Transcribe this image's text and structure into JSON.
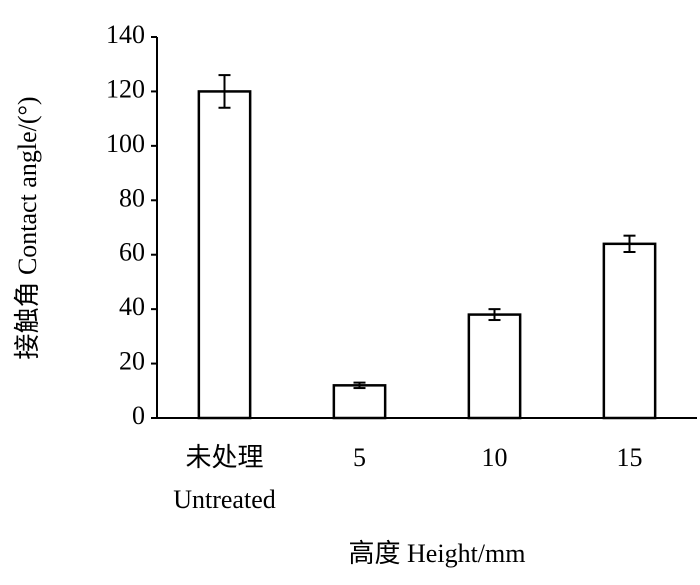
{
  "chart_data": {
    "type": "bar",
    "x_label": "高度 Height/mm",
    "y_label": "接触角 Contact angle/(°)",
    "categories": [
      "未处理\nUntreated",
      "5",
      "10",
      "15"
    ],
    "values": [
      120,
      12,
      38,
      64
    ],
    "errors": [
      6,
      1,
      2,
      3
    ],
    "color": "#ffffff",
    "ylim": [
      0,
      140
    ],
    "yticks": [
      0,
      20,
      40,
      60,
      80,
      100,
      120,
      140
    ],
    "grid": false
  }
}
